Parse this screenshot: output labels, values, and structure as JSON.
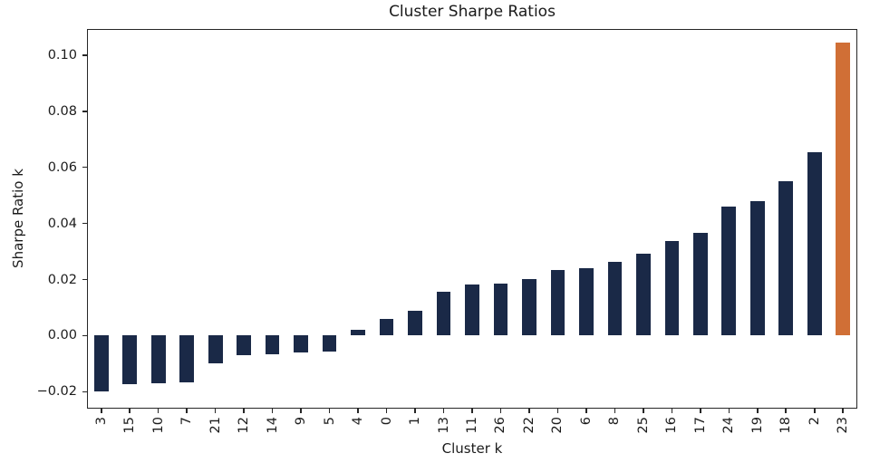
{
  "figure": {
    "title": "Cluster Sharpe Ratios",
    "xlabel": "Cluster k",
    "ylabel": "Sharpe Ratio k"
  },
  "chart_data": {
    "type": "bar",
    "title": "Cluster Sharpe Ratios",
    "xlabel": "Cluster k",
    "ylabel": "Sharpe Ratio k",
    "categories": [
      "3",
      "15",
      "10",
      "7",
      "21",
      "12",
      "14",
      "9",
      "5",
      "4",
      "0",
      "1",
      "13",
      "11",
      "26",
      "22",
      "20",
      "6",
      "8",
      "25",
      "16",
      "17",
      "24",
      "19",
      "18",
      "2",
      "23"
    ],
    "values": [
      -0.02,
      -0.0173,
      -0.0171,
      -0.0168,
      -0.01,
      -0.0071,
      -0.0067,
      -0.006,
      -0.0058,
      0.0022,
      0.006,
      0.009,
      0.0158,
      0.0181,
      0.0186,
      0.0202,
      0.0234,
      0.0241,
      0.0262,
      0.0293,
      0.0336,
      0.0368,
      0.0461,
      0.0478,
      0.055,
      0.0655,
      0.1045
    ],
    "bar_color": "#1a2947",
    "highlight_color": "#d06f36",
    "highlight_category": "23",
    "ylim": [
      -0.026,
      0.1093
    ],
    "yticks": [
      0.1,
      0.08,
      0.06,
      0.04,
      0.02,
      0.0,
      -0.02
    ],
    "ytick_labels": [
      "0.10",
      "0.08",
      "0.06",
      "0.04",
      "0.02",
      "0.00",
      "−0.02"
    ],
    "grid": false,
    "legend": null,
    "sorted": "ascending by value"
  }
}
